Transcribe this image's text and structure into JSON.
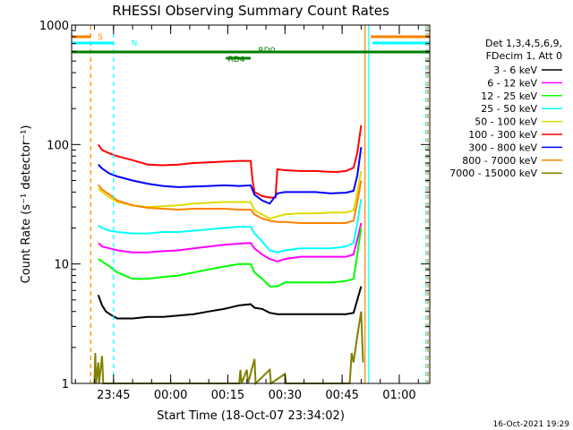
{
  "chart_data": {
    "type": "line",
    "title": "RHESSI Observing Summary Count Rates",
    "xlabel": "Start Time (18-Oct-07 23:34:02)",
    "ylabel": "Count Rate (s⁻¹ detector⁻¹)",
    "y_scale": "log",
    "ylim": [
      1,
      1000
    ],
    "y_ticks": [
      {
        "value": 1,
        "label": "1"
      },
      {
        "value": 10,
        "label": "10"
      },
      {
        "value": 100,
        "label": "100"
      },
      {
        "value": 1000,
        "label": "1000"
      }
    ],
    "xlim": [
      "23:34",
      "01:08"
    ],
    "x_ticks": [
      {
        "minutes": 11,
        "label": "23:45"
      },
      {
        "minutes": 26,
        "label": "00:00"
      },
      {
        "minutes": 41,
        "label": "00:15"
      },
      {
        "minutes": 56,
        "label": "00:30"
      },
      {
        "minutes": 71,
        "label": "00:45"
      },
      {
        "minutes": 86,
        "label": "01:00"
      }
    ],
    "legend_header": [
      "Det 1,3,4,5,6,9,",
      "FDecim 1, Att 0"
    ],
    "legend_position": "right",
    "series": [
      {
        "name": "3 - 6 keV",
        "color": "#000000",
        "points": [
          [
            7,
            5.5
          ],
          [
            8,
            4.5
          ],
          [
            9,
            4
          ],
          [
            10,
            3.8
          ],
          [
            12,
            3.5
          ],
          [
            16,
            3.5
          ],
          [
            20,
            3.6
          ],
          [
            24,
            3.6
          ],
          [
            28,
            3.7
          ],
          [
            32,
            3.8
          ],
          [
            36,
            4
          ],
          [
            40,
            4.2
          ],
          [
            44,
            4.5
          ],
          [
            47,
            4.6
          ],
          [
            48,
            4.3
          ],
          [
            50,
            4.2
          ],
          [
            52,
            3.9
          ],
          [
            54,
            3.8
          ],
          [
            56,
            3.8
          ],
          [
            60,
            3.8
          ],
          [
            64,
            3.8
          ],
          [
            68,
            3.8
          ],
          [
            72,
            3.8
          ],
          [
            74,
            3.9
          ],
          [
            75,
            5
          ],
          [
            76,
            6.5
          ]
        ]
      },
      {
        "name": "6 - 12 keV",
        "color": "#ff00ff",
        "points": [
          [
            7,
            15
          ],
          [
            8,
            14
          ],
          [
            10,
            13.5
          ],
          [
            12,
            13
          ],
          [
            16,
            12.5
          ],
          [
            20,
            12.5
          ],
          [
            24,
            12.8
          ],
          [
            28,
            13
          ],
          [
            32,
            13.5
          ],
          [
            36,
            14
          ],
          [
            40,
            14.5
          ],
          [
            44,
            14.8
          ],
          [
            47,
            15
          ],
          [
            48,
            13.5
          ],
          [
            50,
            12
          ],
          [
            52,
            11
          ],
          [
            54,
            10.5
          ],
          [
            56,
            11
          ],
          [
            60,
            11.5
          ],
          [
            64,
            11.5
          ],
          [
            68,
            11.5
          ],
          [
            72,
            11.5
          ],
          [
            74,
            12
          ],
          [
            75,
            16
          ],
          [
            76,
            22
          ]
        ]
      },
      {
        "name": "12 - 25 keV",
        "color": "#00ff00",
        "points": [
          [
            7,
            11
          ],
          [
            8,
            10.5
          ],
          [
            10,
            9.5
          ],
          [
            12,
            8.5
          ],
          [
            16,
            7.5
          ],
          [
            20,
            7.5
          ],
          [
            24,
            7.8
          ],
          [
            28,
            8
          ],
          [
            32,
            8.5
          ],
          [
            36,
            9
          ],
          [
            40,
            9.5
          ],
          [
            44,
            10
          ],
          [
            47,
            10
          ],
          [
            48,
            8.5
          ],
          [
            50,
            7.5
          ],
          [
            52,
            6.5
          ],
          [
            54,
            6.5
          ],
          [
            56,
            7
          ],
          [
            60,
            7
          ],
          [
            64,
            7
          ],
          [
            68,
            7
          ],
          [
            72,
            7.2
          ],
          [
            74,
            7.5
          ],
          [
            75,
            12
          ],
          [
            76,
            20
          ]
        ]
      },
      {
        "name": "25 - 50 keV",
        "color": "#00ffff",
        "points": [
          [
            7,
            21
          ],
          [
            8,
            20
          ],
          [
            10,
            19
          ],
          [
            12,
            18.5
          ],
          [
            16,
            18
          ],
          [
            20,
            18
          ],
          [
            24,
            18.5
          ],
          [
            28,
            18.5
          ],
          [
            32,
            19
          ],
          [
            36,
            19.5
          ],
          [
            40,
            20
          ],
          [
            44,
            20.5
          ],
          [
            47,
            20.5
          ],
          [
            48,
            18
          ],
          [
            50,
            15.5
          ],
          [
            52,
            13
          ],
          [
            54,
            12.5
          ],
          [
            56,
            13
          ],
          [
            60,
            13.5
          ],
          [
            64,
            13.5
          ],
          [
            68,
            13.5
          ],
          [
            72,
            14
          ],
          [
            74,
            15
          ],
          [
            75,
            22
          ],
          [
            76,
            35
          ]
        ]
      },
      {
        "name": "50 - 100 keV",
        "color": "#dddd00",
        "points": [
          [
            7,
            43
          ],
          [
            8,
            40
          ],
          [
            10,
            36
          ],
          [
            12,
            33
          ],
          [
            16,
            31
          ],
          [
            20,
            30
          ],
          [
            24,
            30.5
          ],
          [
            28,
            31
          ],
          [
            32,
            32
          ],
          [
            36,
            32.5
          ],
          [
            40,
            33
          ],
          [
            44,
            33
          ],
          [
            47,
            33
          ],
          [
            48,
            28
          ],
          [
            50,
            26
          ],
          [
            52,
            24
          ],
          [
            54,
            25
          ],
          [
            56,
            26
          ],
          [
            60,
            26.5
          ],
          [
            64,
            26.5
          ],
          [
            68,
            27
          ],
          [
            72,
            27
          ],
          [
            74,
            28
          ],
          [
            75,
            40
          ],
          [
            76,
            60
          ]
        ]
      },
      {
        "name": "100 - 300 keV",
        "color": "#ff0000",
        "points": [
          [
            7,
            100
          ],
          [
            8,
            90
          ],
          [
            10,
            84
          ],
          [
            12,
            80
          ],
          [
            16,
            74
          ],
          [
            20,
            68
          ],
          [
            24,
            67
          ],
          [
            28,
            68
          ],
          [
            32,
            70
          ],
          [
            36,
            71
          ],
          [
            40,
            72
          ],
          [
            44,
            73
          ],
          [
            47,
            73
          ],
          [
            47.5,
            50
          ],
          [
            48,
            40
          ],
          [
            50,
            37
          ],
          [
            52,
            36
          ],
          [
            53.5,
            36
          ],
          [
            54,
            62
          ],
          [
            56,
            61
          ],
          [
            60,
            60
          ],
          [
            64,
            60
          ],
          [
            68,
            59
          ],
          [
            70,
            59
          ],
          [
            72,
            60
          ],
          [
            74,
            64
          ],
          [
            75,
            85
          ],
          [
            76,
            145
          ]
        ]
      },
      {
        "name": "300 - 800 keV",
        "color": "#0000ff",
        "points": [
          [
            7,
            68
          ],
          [
            8,
            63
          ],
          [
            10,
            57
          ],
          [
            12,
            54
          ],
          [
            16,
            50
          ],
          [
            20,
            47
          ],
          [
            24,
            45
          ],
          [
            28,
            44
          ],
          [
            32,
            44.5
          ],
          [
            36,
            45
          ],
          [
            40,
            45.5
          ],
          [
            44,
            45
          ],
          [
            47,
            45.5
          ],
          [
            48,
            38
          ],
          [
            50,
            34
          ],
          [
            52,
            32
          ],
          [
            54,
            39
          ],
          [
            56,
            40
          ],
          [
            60,
            40
          ],
          [
            64,
            40
          ],
          [
            68,
            39
          ],
          [
            72,
            39.5
          ],
          [
            74,
            41
          ],
          [
            75,
            55
          ],
          [
            76,
            95
          ]
        ]
      },
      {
        "name": "800 - 7000 keV",
        "color": "#ff8000",
        "points": [
          [
            7,
            46
          ],
          [
            8,
            42
          ],
          [
            10,
            38
          ],
          [
            12,
            34
          ],
          [
            16,
            31
          ],
          [
            20,
            29.5
          ],
          [
            24,
            29
          ],
          [
            28,
            28.5
          ],
          [
            32,
            29
          ],
          [
            36,
            29
          ],
          [
            40,
            29
          ],
          [
            44,
            28.5
          ],
          [
            47,
            28.5
          ],
          [
            48,
            26
          ],
          [
            50,
            24
          ],
          [
            52,
            23
          ],
          [
            54,
            22.5
          ],
          [
            56,
            22.5
          ],
          [
            60,
            22
          ],
          [
            64,
            22
          ],
          [
            68,
            22
          ],
          [
            72,
            22
          ],
          [
            74,
            23
          ],
          [
            75,
            33
          ],
          [
            76,
            50
          ]
        ]
      },
      {
        "name": "7000 - 15000 keV",
        "color": "#808000",
        "points": [
          [
            6,
            1
          ],
          [
            6.2,
            1.8
          ],
          [
            6.4,
            1
          ],
          [
            7,
            1.5
          ],
          [
            7.2,
            1
          ],
          [
            8,
            1.7
          ],
          [
            8.3,
            1
          ],
          [
            44,
            1
          ],
          [
            44.3,
            1.3
          ],
          [
            44.6,
            1
          ],
          [
            46,
            1.3
          ],
          [
            46.3,
            1
          ],
          [
            48,
            1.6
          ],
          [
            48.3,
            1
          ],
          [
            52,
            1.3
          ],
          [
            52.3,
            1
          ],
          [
            56,
            1.2
          ],
          [
            56.3,
            1
          ],
          [
            73,
            1
          ],
          [
            73.5,
            1.8
          ],
          [
            74,
            1.5
          ],
          [
            75,
            2.5
          ],
          [
            76,
            4
          ],
          [
            76.5,
            1.5
          ]
        ]
      }
    ],
    "attenuator_bars": [
      {
        "label": "S",
        "color": "#ff8000"
      },
      {
        "label": "N",
        "color": "#00ffff"
      },
      {
        "label": "RD0",
        "color": "#008000"
      },
      {
        "label": "RD4",
        "color": "#008000"
      }
    ],
    "vertical_markers": [
      {
        "minutes": 5,
        "color": "#ff8000",
        "dash": true
      },
      {
        "minutes": 11,
        "color": "#00ffff",
        "dash": true
      },
      {
        "minutes": 77,
        "color": "#ff8000",
        "dash": false
      },
      {
        "minutes": 78,
        "color": "#00ffff",
        "dash": false
      },
      {
        "minutes": 93,
        "color": "#00ffff",
        "dash": true
      },
      {
        "minutes": 93.5,
        "color": "#ff8000",
        "dash": true
      }
    ],
    "timestamp": "16-Oct-2021 19:29"
  }
}
